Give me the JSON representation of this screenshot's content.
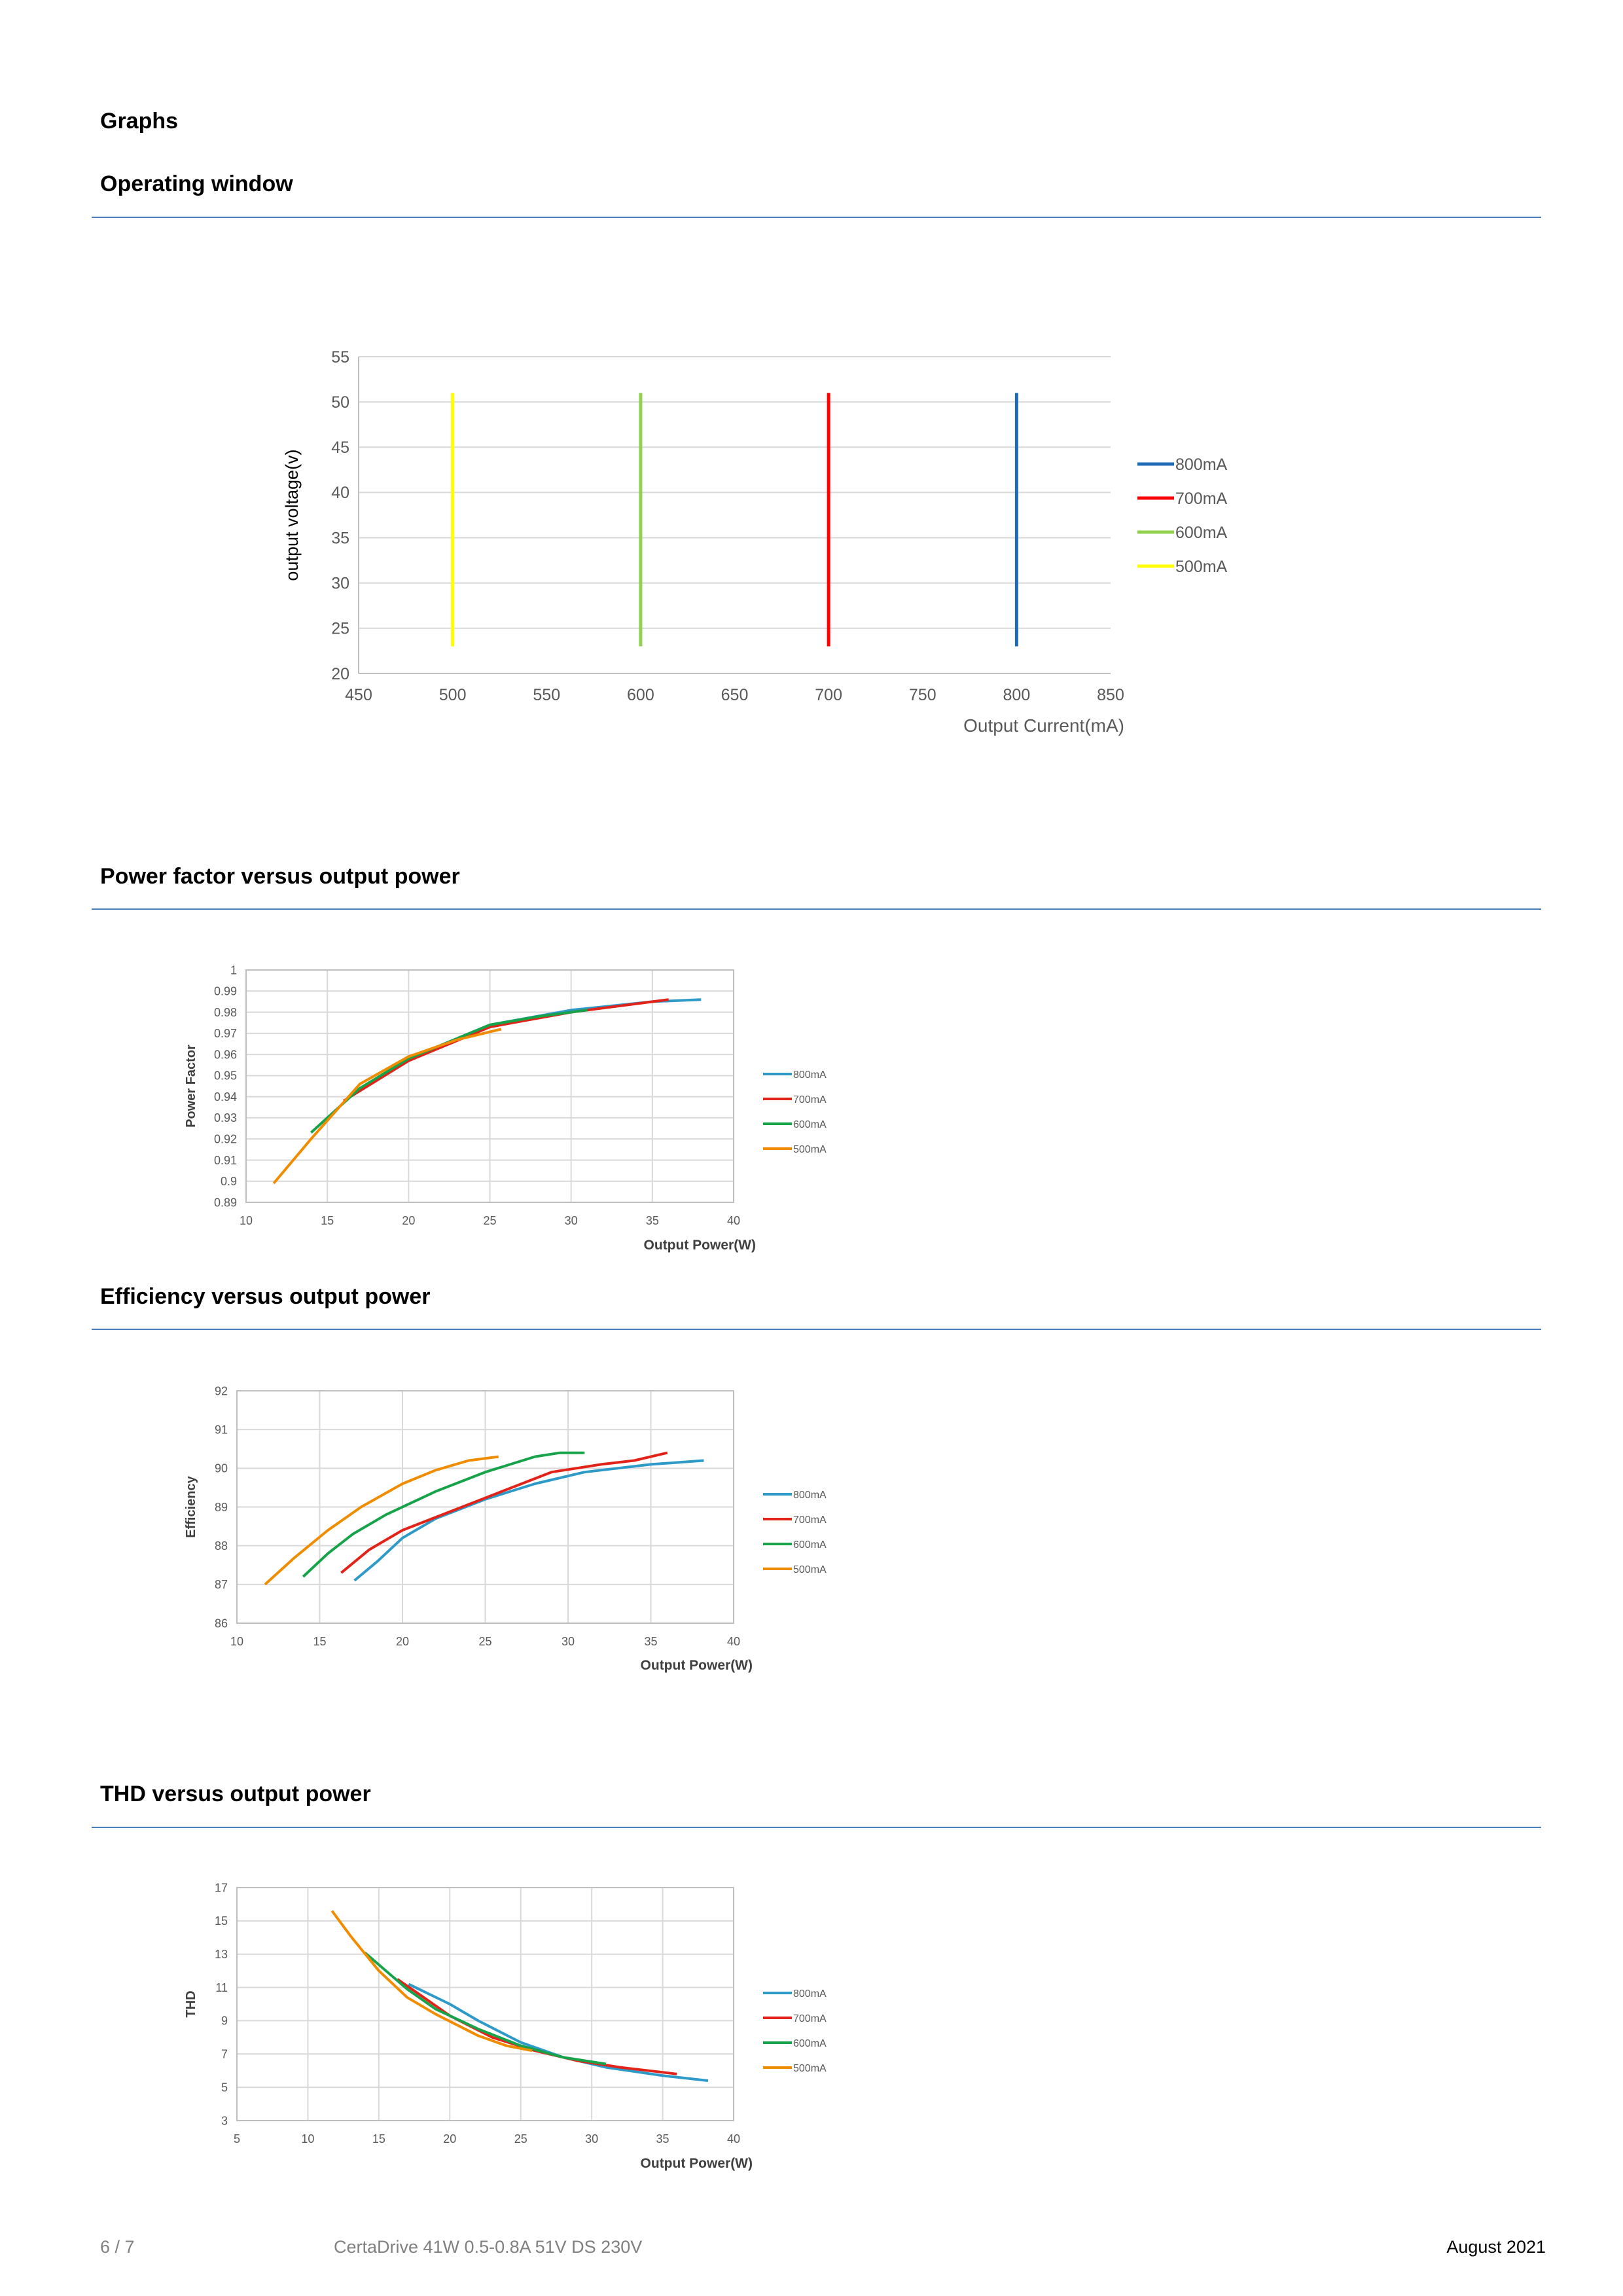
{
  "headings": {
    "graphs": "Graphs",
    "operating_window": "Operating window",
    "pf": "Power factor versus output power",
    "eff": "Efficiency versus output power",
    "thd": "THD versus output power"
  },
  "footer": {
    "page": "6 / 7",
    "product": "CertaDrive 41W 0.5-0.8A 51V DS 230V",
    "date": "August 2021"
  },
  "chart_data": [
    {
      "id": "operating-window",
      "type": "line",
      "xlabel": "Output Current(mA)",
      "ylabel": "output voltage(v)",
      "xlim": [
        450,
        850
      ],
      "ylim": [
        20,
        55
      ],
      "xticks": [
        450,
        500,
        550,
        600,
        650,
        700,
        750,
        800,
        850
      ],
      "yticks": [
        20,
        25,
        30,
        35,
        40,
        45,
        50,
        55
      ],
      "grid": "horizontal",
      "legend": "right",
      "series": [
        {
          "name": "800mA",
          "color": "#1f6bb5",
          "points": [
            [
              800,
              23
            ],
            [
              800,
              51
            ]
          ]
        },
        {
          "name": "700mA",
          "color": "#ff0000",
          "points": [
            [
              700,
              23
            ],
            [
              700,
              51
            ]
          ]
        },
        {
          "name": "600mA",
          "color": "#92d050",
          "points": [
            [
              600,
              23
            ],
            [
              600,
              51
            ]
          ]
        },
        {
          "name": "500mA",
          "color": "#ffff00",
          "points": [
            [
              500,
              23
            ],
            [
              500,
              51
            ]
          ]
        }
      ]
    },
    {
      "id": "power-factor",
      "type": "line",
      "xlabel": "Output Power(W)",
      "ylabel": "Power Factor",
      "xlim": [
        10,
        40
      ],
      "ylim": [
        0.89,
        1
      ],
      "xticks": [
        10,
        15,
        20,
        25,
        30,
        35,
        40
      ],
      "yticks": [
        0.89,
        0.9,
        0.91,
        0.92,
        0.93,
        0.94,
        0.95,
        0.96,
        0.97,
        0.98,
        0.99,
        1
      ],
      "ytick_labels": [
        "0.89",
        "0.9",
        "0.91",
        "0.92",
        "0.93",
        "0.94",
        "0.95",
        "0.96",
        "0.97",
        "0.98",
        "0.99",
        "1"
      ],
      "grid": "both",
      "legend": "right",
      "series": [
        {
          "name": "800mA",
          "color": "#2e9ac8",
          "points": [
            [
              16.5,
              0.941
            ],
            [
              20,
              0.958
            ],
            [
              25,
              0.974
            ],
            [
              30,
              0.981
            ],
            [
              35,
              0.985
            ],
            [
              38,
              0.986
            ]
          ]
        },
        {
          "name": "700mA",
          "color": "#e2231a",
          "points": [
            [
              16,
              0.938
            ],
            [
              20,
              0.957
            ],
            [
              25,
              0.973
            ],
            [
              30,
              0.98
            ],
            [
              33,
              0.983
            ],
            [
              36,
              0.986
            ]
          ]
        },
        {
          "name": "600mA",
          "color": "#17a34a",
          "points": [
            [
              14,
              0.923
            ],
            [
              17,
              0.944
            ],
            [
              20,
              0.958
            ],
            [
              25,
              0.974
            ],
            [
              28,
              0.978
            ],
            [
              31,
              0.981
            ]
          ]
        },
        {
          "name": "500mA",
          "color": "#f08c00",
          "points": [
            [
              11.7,
              0.899
            ],
            [
              14,
              0.92
            ],
            [
              17,
              0.946
            ],
            [
              20,
              0.959
            ],
            [
              23,
              0.967
            ],
            [
              25.7,
              0.972
            ]
          ]
        }
      ]
    },
    {
      "id": "efficiency",
      "type": "line",
      "xlabel": "Output Power(W)",
      "ylabel": "Efficiency",
      "xlim": [
        10,
        40
      ],
      "ylim": [
        86,
        92
      ],
      "xticks": [
        10,
        15,
        20,
        25,
        30,
        35,
        40
      ],
      "yticks": [
        86,
        87,
        88,
        89,
        90,
        91,
        92
      ],
      "grid": "both",
      "legend": "right",
      "series": [
        {
          "name": "800mA",
          "color": "#2e9ac8",
          "points": [
            [
              17.1,
              87.1
            ],
            [
              18.5,
              87.6
            ],
            [
              20,
              88.2
            ],
            [
              22,
              88.7
            ],
            [
              25,
              89.2
            ],
            [
              28,
              89.6
            ],
            [
              31,
              89.9
            ],
            [
              35,
              90.1
            ],
            [
              38.2,
              90.2
            ]
          ]
        },
        {
          "name": "700mA",
          "color": "#e2231a",
          "points": [
            [
              16.3,
              87.3
            ],
            [
              18,
              87.9
            ],
            [
              20,
              88.4
            ],
            [
              23,
              88.9
            ],
            [
              26,
              89.4
            ],
            [
              29,
              89.9
            ],
            [
              32,
              90.1
            ],
            [
              34,
              90.2
            ],
            [
              36,
              90.4
            ]
          ]
        },
        {
          "name": "600mA",
          "color": "#17a34a",
          "points": [
            [
              14,
              87.2
            ],
            [
              15.5,
              87.8
            ],
            [
              17,
              88.3
            ],
            [
              19,
              88.8
            ],
            [
              22,
              89.4
            ],
            [
              25,
              89.9
            ],
            [
              28,
              90.3
            ],
            [
              29.5,
              90.4
            ],
            [
              31,
              90.4
            ]
          ]
        },
        {
          "name": "500mA",
          "color": "#f08c00",
          "points": [
            [
              11.7,
              87
            ],
            [
              13.5,
              87.7
            ],
            [
              15.5,
              88.4
            ],
            [
              17.5,
              89
            ],
            [
              20,
              89.6
            ],
            [
              22,
              89.95
            ],
            [
              24,
              90.2
            ],
            [
              25.8,
              90.3
            ]
          ]
        }
      ]
    },
    {
      "id": "thd",
      "type": "line",
      "xlabel": "Output Power(W)",
      "ylabel": "THD",
      "xlim": [
        5,
        40
      ],
      "ylim": [
        3,
        17
      ],
      "xticks": [
        5,
        10,
        15,
        20,
        25,
        30,
        35,
        40
      ],
      "yticks": [
        3,
        5,
        7,
        9,
        11,
        13,
        15,
        17
      ],
      "grid": "both",
      "legend": "right",
      "series": [
        {
          "name": "800mA",
          "color": "#2e9ac8",
          "points": [
            [
              17.1,
              11.2
            ],
            [
              20,
              10
            ],
            [
              22,
              9
            ],
            [
              25,
              7.7
            ],
            [
              28,
              6.8
            ],
            [
              31,
              6.2
            ],
            [
              35,
              5.7
            ],
            [
              38.2,
              5.4
            ]
          ]
        },
        {
          "name": "700mA",
          "color": "#e2231a",
          "points": [
            [
              16.3,
              11.5
            ],
            [
              18,
              10.5
            ],
            [
              20,
              9.3
            ],
            [
              23,
              8
            ],
            [
              26,
              7.2
            ],
            [
              29,
              6.6
            ],
            [
              32,
              6.2
            ],
            [
              34,
              6
            ],
            [
              36,
              5.8
            ]
          ]
        },
        {
          "name": "600mA",
          "color": "#17a34a",
          "points": [
            [
              14,
              13.1
            ],
            [
              15.5,
              12
            ],
            [
              17,
              10.9
            ],
            [
              19,
              9.7
            ],
            [
              22,
              8.5
            ],
            [
              25,
              7.5
            ],
            [
              28,
              6.8
            ],
            [
              31,
              6.4
            ]
          ]
        },
        {
          "name": "500mA",
          "color": "#f08c00",
          "points": [
            [
              11.7,
              15.6
            ],
            [
              13,
              14.1
            ],
            [
              15,
              12
            ],
            [
              17,
              10.4
            ],
            [
              19,
              9.4
            ],
            [
              22,
              8.1
            ],
            [
              24,
              7.5
            ],
            [
              25.8,
              7.2
            ]
          ]
        }
      ]
    }
  ]
}
